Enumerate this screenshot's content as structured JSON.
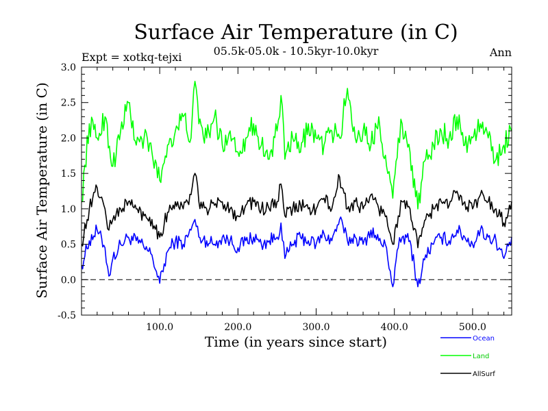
{
  "chart_data": {
    "type": "line",
    "title": "Surface Air Temperature (in C)",
    "subtitle": "05.5k-05.0k - 10.5kyr-10.0kyr",
    "expt_label": "Expt = xotkq-tejxi",
    "season_label": "Ann",
    "xlabel": "Time (in years since start)",
    "ylabel": "Surface Air Temperature (in C)",
    "xlim": [
      0,
      550
    ],
    "ylim": [
      -0.5,
      3.0
    ],
    "x_ticks": [
      100,
      200,
      300,
      400,
      500
    ],
    "x_tick_labels": [
      "100.0",
      "200.0",
      "300.0",
      "400.0",
      "500.0"
    ],
    "y_ticks": [
      -0.5,
      0.0,
      0.5,
      1.0,
      1.5,
      2.0,
      2.5,
      3.0
    ],
    "y_tick_labels": [
      "-0.5",
      "0.0",
      "0.5",
      "1.0",
      "1.5",
      "2.0",
      "2.5",
      "3.0"
    ],
    "reference_line": 0.0,
    "series": [
      {
        "name": "Ocean",
        "color": "#0000ff",
        "x": [
          0,
          10,
          20,
          30,
          35,
          40,
          50,
          60,
          70,
          80,
          90,
          100,
          110,
          120,
          130,
          140,
          145,
          150,
          160,
          170,
          180,
          190,
          200,
          210,
          220,
          230,
          240,
          250,
          255,
          260,
          270,
          280,
          290,
          300,
          310,
          320,
          330,
          340,
          350,
          360,
          370,
          380,
          390,
          398,
          405,
          410,
          420,
          430,
          440,
          450,
          460,
          470,
          480,
          490,
          500,
          510,
          520,
          530,
          540,
          550
        ],
        "values": [
          0.2,
          0.55,
          0.7,
          0.45,
          0.05,
          0.3,
          0.5,
          0.6,
          0.55,
          0.45,
          0.35,
          -0.05,
          0.4,
          0.55,
          0.5,
          0.7,
          0.85,
          0.6,
          0.55,
          0.5,
          0.6,
          0.55,
          0.45,
          0.55,
          0.6,
          0.5,
          0.55,
          0.6,
          0.8,
          0.3,
          0.5,
          0.6,
          0.55,
          0.5,
          0.65,
          0.55,
          0.85,
          0.55,
          0.6,
          0.5,
          0.7,
          0.55,
          0.45,
          -0.1,
          0.45,
          0.6,
          0.55,
          -0.1,
          0.35,
          0.5,
          0.6,
          0.55,
          0.7,
          0.6,
          0.5,
          0.7,
          0.6,
          0.55,
          0.3,
          0.6
        ]
      },
      {
        "name": "Land",
        "color": "#00ff00",
        "x": [
          0,
          10,
          20,
          30,
          40,
          50,
          60,
          70,
          80,
          90,
          100,
          110,
          120,
          130,
          140,
          145,
          150,
          160,
          170,
          180,
          190,
          200,
          210,
          220,
          230,
          240,
          250,
          255,
          260,
          270,
          280,
          290,
          300,
          310,
          320,
          330,
          340,
          350,
          360,
          370,
          380,
          390,
          398,
          405,
          410,
          420,
          430,
          440,
          450,
          460,
          470,
          480,
          490,
          500,
          510,
          520,
          530,
          540,
          550
        ],
        "values": [
          1.1,
          2.2,
          2.0,
          2.3,
          1.6,
          2.1,
          2.5,
          1.9,
          2.0,
          1.8,
          1.4,
          1.9,
          2.1,
          2.3,
          2.0,
          2.8,
          2.2,
          2.0,
          2.3,
          1.9,
          2.1,
          1.8,
          2.0,
          2.2,
          1.9,
          1.7,
          2.1,
          2.6,
          1.7,
          2.0,
          1.8,
          2.2,
          2.0,
          1.9,
          2.1,
          2.0,
          2.7,
          2.0,
          2.1,
          1.9,
          2.3,
          1.6,
          1.15,
          2.0,
          2.2,
          1.8,
          1.0,
          1.7,
          1.9,
          2.1,
          2.0,
          2.3,
          1.9,
          2.0,
          2.2,
          2.0,
          1.7,
          1.9,
          2.1
        ]
      },
      {
        "name": "AllSurf",
        "color": "#000000",
        "x": [
          0,
          10,
          20,
          30,
          35,
          40,
          50,
          60,
          70,
          80,
          90,
          100,
          110,
          120,
          130,
          140,
          145,
          150,
          160,
          170,
          180,
          190,
          200,
          210,
          220,
          230,
          240,
          250,
          255,
          260,
          270,
          280,
          290,
          300,
          310,
          320,
          330,
          340,
          350,
          360,
          370,
          380,
          390,
          398,
          405,
          410,
          420,
          430,
          440,
          450,
          460,
          470,
          480,
          490,
          500,
          510,
          520,
          530,
          540,
          550
        ],
        "values": [
          0.5,
          1.0,
          1.3,
          1.0,
          0.7,
          0.85,
          1.0,
          1.1,
          1.0,
          0.9,
          0.85,
          0.6,
          0.95,
          1.1,
          1.0,
          1.2,
          1.5,
          1.1,
          1.0,
          1.05,
          1.1,
          1.0,
          0.9,
          1.05,
          1.1,
          1.0,
          1.0,
          1.1,
          1.35,
          0.9,
          1.0,
          1.05,
          1.0,
          1.0,
          1.15,
          1.0,
          1.45,
          1.0,
          1.1,
          1.0,
          1.2,
          1.0,
          0.9,
          0.5,
          0.9,
          1.1,
          1.0,
          0.45,
          0.85,
          1.0,
          1.1,
          1.05,
          1.25,
          1.1,
          1.0,
          1.2,
          1.1,
          1.0,
          0.8,
          1.1
        ]
      }
    ],
    "legend": [
      "Ocean",
      "Land",
      "AllSurf"
    ],
    "legend_position": "bottom-right"
  }
}
